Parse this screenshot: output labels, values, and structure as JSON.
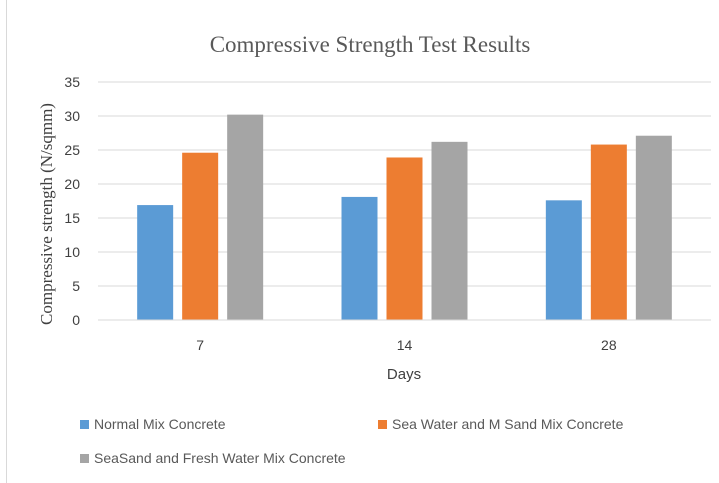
{
  "chart_data": {
    "type": "bar",
    "title": "Compressive  Strength Test Results",
    "xlabel": "Days",
    "ylabel": "Compressive strength (N/sqmm)",
    "categories": [
      "7",
      "14",
      "28"
    ],
    "series": [
      {
        "name": "Normal Mix Concrete",
        "values": [
          16.9,
          18.1,
          17.6
        ],
        "color": "#5b9bd5"
      },
      {
        "name": "Sea Water and M Sand Mix Concrete",
        "values": [
          24.6,
          23.9,
          25.8
        ],
        "color": "#ed7d31"
      },
      {
        "name": "SeaSand and Fresh Water Mix Concrete",
        "values": [
          30.2,
          26.2,
          27.1
        ],
        "color": "#a5a5a5"
      }
    ],
    "ylim": [
      0,
      35
    ],
    "yticks": [
      "0",
      "5",
      "10",
      "15",
      "20",
      "25",
      "30",
      "35"
    ],
    "grid": true,
    "legend_position": "bottom"
  }
}
